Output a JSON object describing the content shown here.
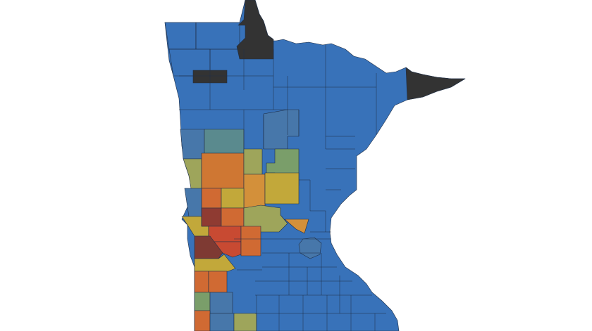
{
  "map": {
    "region": "Minnesota",
    "unit": "county",
    "colors": {
      "no-data": "#333333",
      "blue": "#3872b9",
      "steel-blue": "#4777aa",
      "teal": "#5a8a8e",
      "sage": "#7a9e6a",
      "olive": "#9ea55b",
      "mustard": "#c2a83a",
      "light-orange": "#d3903a",
      "orange": "#cf7733",
      "dark-orange": "#d06a33",
      "red": "#c84a32",
      "dark-red": "#8f3b32",
      "maroon": "#7e3a33"
    },
    "counties": [
      {
        "id": "kittson",
        "color": "blue"
      },
      {
        "id": "roseau",
        "color": "blue"
      },
      {
        "id": "lake-of-the-woods",
        "color": "no-data"
      },
      {
        "id": "marshall",
        "color": "blue"
      },
      {
        "id": "red-lake",
        "color": "no-data"
      },
      {
        "id": "cook",
        "color": "no-data"
      },
      {
        "id": "becker-east",
        "color": "steel-blue"
      },
      {
        "id": "clay",
        "color": "steel-blue"
      },
      {
        "id": "otter-tail",
        "color": "teal"
      },
      {
        "id": "wilkin",
        "color": "olive"
      },
      {
        "id": "douglas-grant",
        "color": "orange"
      },
      {
        "id": "todd",
        "color": "olive"
      },
      {
        "id": "morrison",
        "color": "sage"
      },
      {
        "id": "stearns-west",
        "color": "light-orange"
      },
      {
        "id": "benton",
        "color": "mustard"
      },
      {
        "id": "stevens",
        "color": "dark-orange"
      },
      {
        "id": "pope",
        "color": "mustard"
      },
      {
        "id": "traverse",
        "color": "steel-blue"
      },
      {
        "id": "big-stone",
        "color": "mustard"
      },
      {
        "id": "swift",
        "color": "dark-red"
      },
      {
        "id": "kandiyohi-w",
        "color": "dark-orange"
      },
      {
        "id": "stearns-south",
        "color": "olive"
      },
      {
        "id": "wright-corner",
        "color": "light-orange"
      },
      {
        "id": "chippewa",
        "color": "red"
      },
      {
        "id": "renville",
        "color": "red"
      },
      {
        "id": "mcleod",
        "color": "dark-orange"
      },
      {
        "id": "lac-qui-parle",
        "color": "maroon"
      },
      {
        "id": "yellow-medicine",
        "color": "mustard"
      },
      {
        "id": "lincoln",
        "color": "dark-orange"
      },
      {
        "id": "lyon",
        "color": "dark-orange"
      },
      {
        "id": "pipestone",
        "color": "sage"
      },
      {
        "id": "murray",
        "color": "steel-blue"
      },
      {
        "id": "rock",
        "color": "dark-orange"
      },
      {
        "id": "nobles",
        "color": "steel-blue"
      },
      {
        "id": "jackson",
        "color": "olive"
      },
      {
        "id": "metro",
        "color": "steel-blue"
      }
    ]
  }
}
